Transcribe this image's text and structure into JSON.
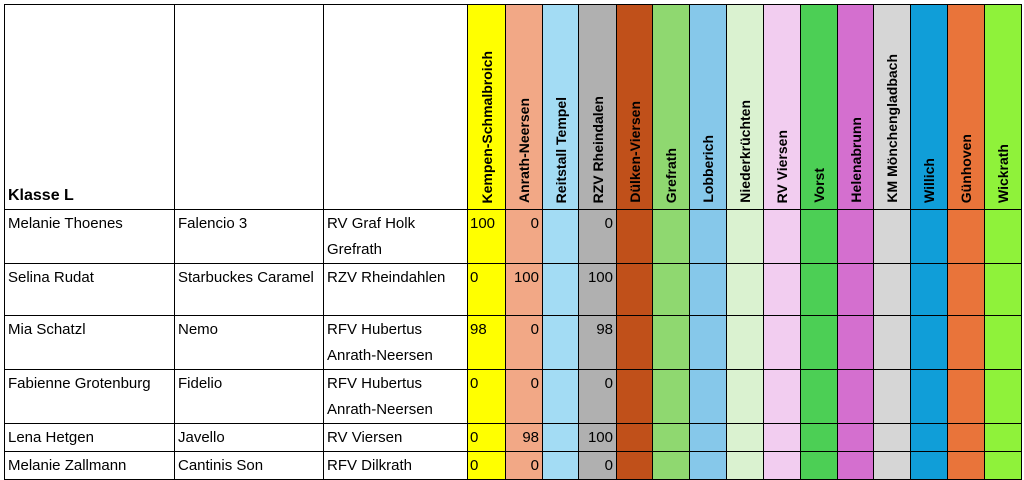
{
  "table": {
    "class_label": "Klasse L",
    "venues": [
      {
        "name": "Kempen-Schmalbroich",
        "color": "#ffff00"
      },
      {
        "name": "Anrath-Neersen",
        "color": "#f2a886"
      },
      {
        "name": "Reitstall Tempel",
        "color": "#a3dcf4"
      },
      {
        "name": "RZV Rheindalen",
        "color": "#b0b0b0"
      },
      {
        "name": "Dülken-Viersen",
        "color": "#c0501a"
      },
      {
        "name": "Grefrath",
        "color": "#8fd870"
      },
      {
        "name": "Lobberich",
        "color": "#86c8ea"
      },
      {
        "name": "Niederkrüchten",
        "color": "#daf2d0"
      },
      {
        "name": "RV Viersen",
        "color": "#f2cdf0"
      },
      {
        "name": "Vorst",
        "color": "#4ccf55"
      },
      {
        "name": "Helenabrunn",
        "color": "#d46fcf"
      },
      {
        "name": "KM Mönchengladbach",
        "color": "#d6d6d6"
      },
      {
        "name": "Willich",
        "color": "#109ed8"
      },
      {
        "name": "Günhoven",
        "color": "#e9743a"
      },
      {
        "name": "Wickrath",
        "color": "#8ff23a"
      }
    ],
    "rows": [
      {
        "rider": "Melanie Thoenes",
        "horse": "Falencio 3",
        "club": [
          "RV Graf Holk",
          "Grefrath"
        ],
        "scores": [
          "100",
          "0",
          "",
          "0",
          "",
          "",
          "",
          "",
          "",
          "",
          "",
          "",
          "",
          "",
          ""
        ]
      },
      {
        "rider": "Selina Rudat",
        "horse": "Starbuckes Caramel",
        "club": [
          "RZV Rheindahlen"
        ],
        "scores": [
          "0",
          "100",
          "",
          "100",
          "",
          "",
          "",
          "",
          "",
          "",
          "",
          "",
          "",
          "",
          ""
        ]
      },
      {
        "rider": "Mia Schatzl",
        "horse": "Nemo",
        "club": [
          "RFV Hubertus",
          "Anrath-Neersen"
        ],
        "scores": [
          "98",
          "0",
          "",
          "98",
          "",
          "",
          "",
          "",
          "",
          "",
          "",
          "",
          "",
          "",
          ""
        ]
      },
      {
        "rider": "Fabienne Grotenburg",
        "horse": "Fidelio",
        "club": [
          "RFV Hubertus",
          "Anrath-Neersen"
        ],
        "scores": [
          "0",
          "0",
          "",
          "0",
          "",
          "",
          "",
          "",
          "",
          "",
          "",
          "",
          "",
          "",
          ""
        ]
      },
      {
        "rider": "Lena Hetgen",
        "horse": "Javello",
        "club": [
          "RV Viersen"
        ],
        "scores": [
          "0",
          "98",
          "",
          "100",
          "",
          "",
          "",
          "",
          "",
          "",
          "",
          "",
          "",
          "",
          ""
        ]
      },
      {
        "rider": "Melanie Zallmann",
        "horse": "Cantinis Son",
        "club": [
          "RFV Dilkrath"
        ],
        "scores": [
          "0",
          "0",
          "",
          "0",
          "",
          "",
          "",
          "",
          "",
          "",
          "",
          "",
          "",
          "",
          ""
        ]
      }
    ]
  }
}
